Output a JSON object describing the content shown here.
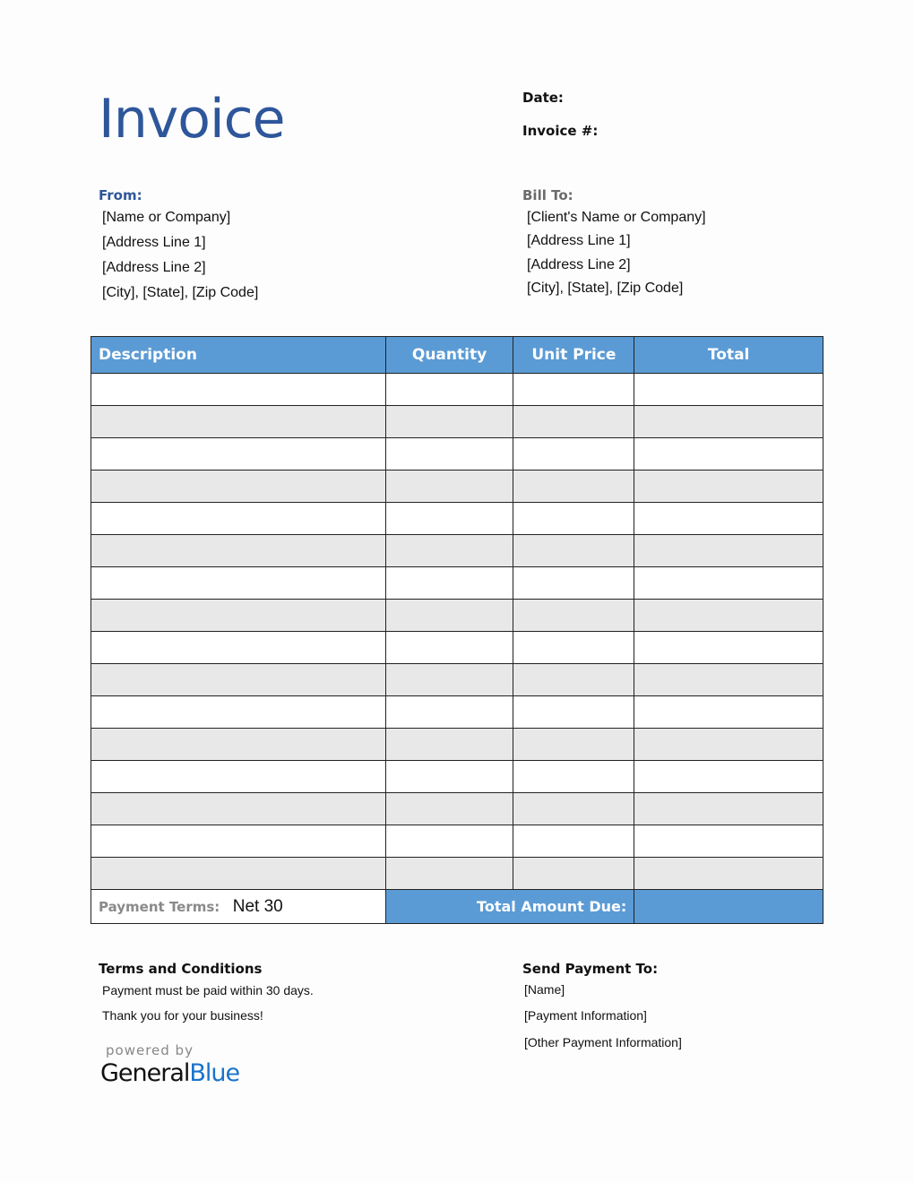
{
  "header": {
    "title": "Invoice",
    "date_label": "Date:",
    "invoice_no_label": "Invoice #:"
  },
  "from": {
    "label": "From:",
    "lines": [
      "[Name or Company]",
      "[Address Line 1]",
      "[Address Line 2]",
      "[City], [State], [Zip Code]"
    ]
  },
  "bill_to": {
    "label": "Bill To:",
    "lines": [
      "[Client's Name or Company]",
      "[Address Line 1]",
      "[Address Line 2]",
      "[City], [State], [Zip Code]"
    ]
  },
  "table": {
    "columns": [
      "Description",
      "Quantity",
      "Unit Price",
      "Total"
    ],
    "payment_terms_label": "Payment Terms:",
    "payment_terms_value": "Net 30",
    "total_due_label": "Total Amount Due:"
  },
  "terms": {
    "label": "Terms and Conditions",
    "lines": [
      "Payment must be paid within 30 days.",
      "Thank you for your business!"
    ]
  },
  "send_payment": {
    "label": "Send Payment To:",
    "lines": [
      "[Name]",
      "[Payment Information]",
      "[Other Payment Information]"
    ]
  },
  "branding": {
    "powered_by": "powered by",
    "logo_general": "General",
    "logo_blue": "Blue"
  },
  "colors": {
    "accent": "#5b9bd5",
    "title": "#2e569a"
  }
}
